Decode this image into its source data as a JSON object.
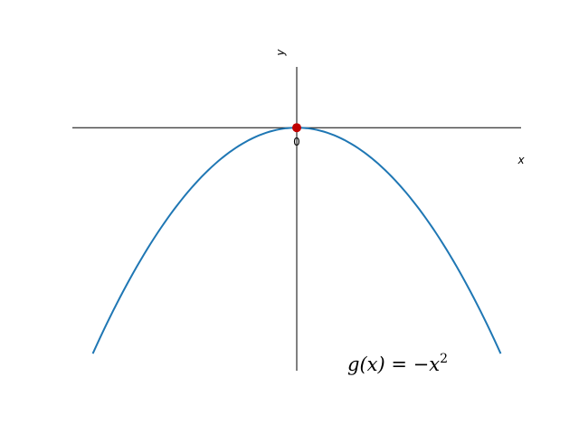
{
  "chart_data": {
    "type": "line",
    "title": "",
    "xlabel": "x",
    "ylabel": "y",
    "xlim": [
      -3.0,
      3.0
    ],
    "ylim": [
      -8.0,
      2.0
    ],
    "x_tick_labels": [],
    "y_tick_labels": [],
    "origin_label": "0",
    "grid": false,
    "series": [
      {
        "function": "-x^2",
        "color": "#1f77b4",
        "x": [
          -2.727,
          -2.5,
          -2.0,
          -1.5,
          -1.0,
          -0.5,
          0.0,
          0.5,
          1.0,
          1.5,
          2.0,
          2.5,
          2.727
        ],
        "y": [
          -7.438,
          -6.25,
          -4.0,
          -2.25,
          -1.0,
          -0.25,
          0.0,
          -0.25,
          -1.0,
          -2.25,
          -4.0,
          -6.25,
          -7.438
        ]
      }
    ],
    "points": [
      {
        "x": 0,
        "y": 0,
        "color": "#c00000"
      }
    ],
    "annotation": {
      "lhs": "g(x) = ",
      "rhs_sign": "−",
      "rhs_var": "x",
      "rhs_exp": "2"
    }
  }
}
